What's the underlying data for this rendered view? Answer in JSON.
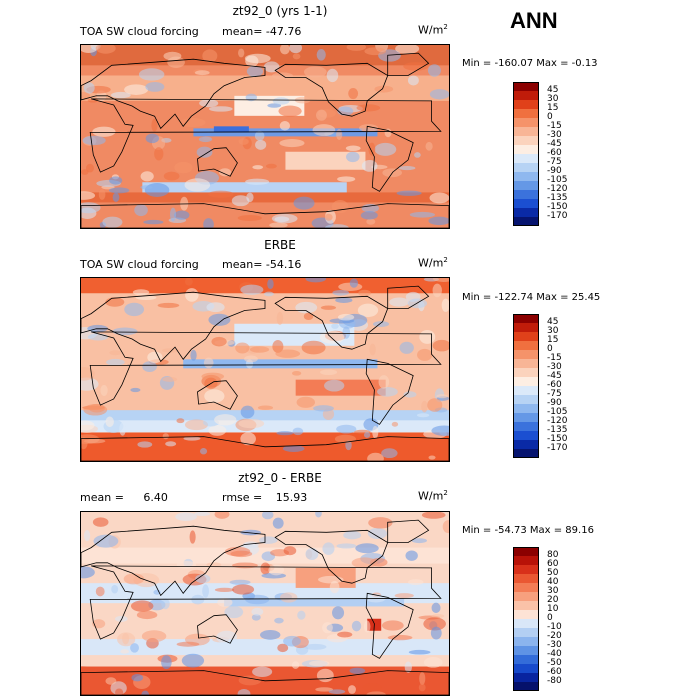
{
  "page_title": "ANN",
  "panels": [
    {
      "title": "zt92_0 (yrs 1-1)",
      "left_label": "TOA SW cloud forcing",
      "stat_label": "mean=",
      "stat_value": "-47.76",
      "units": "W/m",
      "units_exp": "2",
      "minmax": "Min = -160.07 Max =  -0.13",
      "levels": [
        "45",
        "30",
        "15",
        "0",
        "-15",
        "-30",
        "-45",
        "-60",
        "-75",
        "-90",
        "-105",
        "-120",
        "-135",
        "-150",
        "-170"
      ],
      "colors": [
        "#8b0000",
        "#c01c0a",
        "#e0411a",
        "#f0703f",
        "#f5936a",
        "#f8b596",
        "#fbd3bd",
        "#fdeee3",
        "#dbe9f9",
        "#b7d3f4",
        "#8fb8ef",
        "#6598e6",
        "#3b72dc",
        "#1b4fd1",
        "#0a2aa6",
        "#06146f"
      ],
      "field_style": "model"
    },
    {
      "title": "ERBE",
      "left_label": "TOA SW cloud forcing",
      "stat_label": "mean=",
      "stat_value": "-54.16",
      "units": "W/m",
      "units_exp": "2",
      "minmax": "Min = -122.74 Max =  25.45",
      "levels": [
        "45",
        "30",
        "15",
        "0",
        "-15",
        "-30",
        "-45",
        "-60",
        "-75",
        "-90",
        "-105",
        "-120",
        "-135",
        "-150",
        "-170"
      ],
      "colors": [
        "#8b0000",
        "#c01c0a",
        "#e0411a",
        "#f0703f",
        "#f5936a",
        "#f8b596",
        "#fbd3bd",
        "#fdeee3",
        "#dbe9f9",
        "#b7d3f4",
        "#8fb8ef",
        "#6598e6",
        "#3b72dc",
        "#1b4fd1",
        "#0a2aa6",
        "#06146f"
      ],
      "field_style": "obs"
    },
    {
      "title": "zt92_0 - ERBE",
      "left_label": "mean =",
      "left_value": "6.40",
      "stat_label": "rmse =",
      "stat_value": "15.93",
      "units": "W/m",
      "units_exp": "2",
      "minmax": "Min = -54.73 Max =  89.16",
      "levels": [
        "80",
        "60",
        "50",
        "40",
        "30",
        "20",
        "10",
        "0",
        "-10",
        "-20",
        "-30",
        "-40",
        "-50",
        "-60",
        "-80"
      ],
      "colors": [
        "#8b0000",
        "#b81208",
        "#d8301a",
        "#ea5732",
        "#f37c55",
        "#f7a07e",
        "#fac2a8",
        "#fde3d5",
        "#d9e7f8",
        "#b3cff3",
        "#8bb4ee",
        "#5f93e5",
        "#336cd9",
        "#174acb",
        "#08249f",
        "#05116b"
      ],
      "field_style": "diff"
    }
  ],
  "chart_data": [
    {
      "type": "heatmap",
      "title": "zt92_0 (yrs 1-1)",
      "subtitle": "TOA SW cloud forcing",
      "units": "W/m2",
      "mean": -47.76,
      "min": -160.07,
      "max": -0.13,
      "colorbar_levels": [
        45,
        30,
        15,
        0,
        -15,
        -30,
        -45,
        -60,
        -75,
        -90,
        -105,
        -120,
        -135,
        -150,
        -170
      ]
    },
    {
      "type": "heatmap",
      "title": "ERBE",
      "subtitle": "TOA SW cloud forcing",
      "units": "W/m2",
      "mean": -54.16,
      "min": -122.74,
      "max": 25.45,
      "colorbar_levels": [
        45,
        30,
        15,
        0,
        -15,
        -30,
        -45,
        -60,
        -75,
        -90,
        -105,
        -120,
        -135,
        -150,
        -170
      ]
    },
    {
      "type": "heatmap",
      "title": "zt92_0 - ERBE",
      "units": "W/m2",
      "mean": 6.4,
      "rmse": 15.93,
      "min": -54.73,
      "max": 89.16,
      "colorbar_levels": [
        80,
        60,
        50,
        40,
        30,
        20,
        10,
        0,
        -10,
        -20,
        -30,
        -40,
        -50,
        -60,
        -80
      ]
    }
  ]
}
